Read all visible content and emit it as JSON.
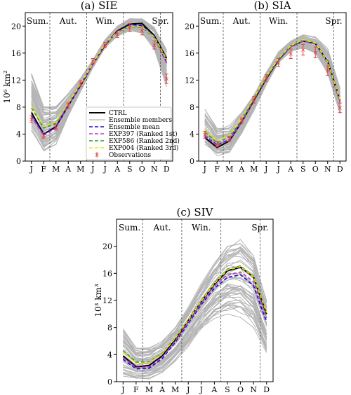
{
  "chart_data": [
    {
      "type": "line",
      "title": "(a) SIE",
      "ylabel": "10⁶ km²",
      "ylim": [
        0,
        22
      ],
      "yticks": [
        0,
        4,
        8,
        12,
        16,
        20
      ],
      "x": [
        "J",
        "F",
        "M",
        "A",
        "M",
        "J",
        "J",
        "A",
        "S",
        "O",
        "N",
        "D"
      ],
      "seasons": [
        "Sum.",
        "Aut.",
        "Win.",
        "Spr."
      ],
      "season_boundaries": [
        1.5,
        4.5,
        7.5,
        10.5
      ],
      "ensemble_band": {
        "lower": [
          4.5,
          1.0,
          2.2,
          6.5,
          10.2,
          13.8,
          16.8,
          18.5,
          19.2,
          18.9,
          16.5,
          11.0
        ],
        "upper": [
          13.0,
          8.0,
          8.3,
          10.0,
          12.3,
          15.0,
          18.0,
          20.0,
          21.1,
          21.1,
          19.8,
          16.5
        ]
      },
      "series": [
        {
          "name": "CTRL",
          "color": "#000000",
          "dash": "solid",
          "values": [
            7.2,
            4.0,
            5.1,
            8.2,
            11.2,
            14.4,
            17.2,
            19.3,
            20.3,
            20.4,
            18.6,
            15.2
          ]
        },
        {
          "name": "Ensemble mean",
          "color": "#1010d0",
          "dash": "dashed",
          "values": [
            6.8,
            4.0,
            5.0,
            8.3,
            11.3,
            14.4,
            17.3,
            19.2,
            20.2,
            20.1,
            18.5,
            14.6
          ]
        },
        {
          "name": "EXP397 (Ranked 1st)",
          "color": "#cc33cc",
          "dash": "dashed",
          "values": [
            6.6,
            3.8,
            4.9,
            8.2,
            11.2,
            14.3,
            17.3,
            19.1,
            20.0,
            19.9,
            18.3,
            14.5
          ]
        },
        {
          "name": "EXP586 (Ranked 2nd)",
          "color": "#2a9d2a",
          "dash": "dashed",
          "values": [
            7.9,
            4.9,
            5.6,
            8.5,
            11.4,
            14.5,
            17.4,
            19.1,
            19.9,
            19.8,
            18.3,
            15.0
          ]
        },
        {
          "name": "EXP004 (Ranked 3rd)",
          "color": "#f2e600",
          "dash": "dashed",
          "values": [
            8.2,
            5.1,
            5.8,
            8.6,
            11.5,
            14.5,
            17.4,
            19.1,
            20.0,
            19.9,
            18.4,
            15.1
          ]
        }
      ],
      "observations": {
        "name": "Observations",
        "color": "#e04040",
        "values": [
          6.2,
          3.8,
          5.0,
          8.2,
          11.5,
          14.8,
          17.2,
          18.8,
          19.8,
          19.3,
          17.2,
          12.2
        ],
        "err": [
          0.5,
          0.4,
          0.4,
          0.4,
          0.4,
          0.4,
          0.4,
          0.5,
          0.6,
          0.6,
          0.6,
          0.7
        ]
      },
      "legend": {
        "placement": "lower-right",
        "entries": [
          "CTRL",
          "Ensemble members",
          "Ensemble mean",
          "EXP397 (Ranked 1st)",
          "EXP586 (Ranked 2nd)",
          "EXP004 (Ranked 3rd)",
          "Observations"
        ]
      }
    },
    {
      "type": "line",
      "title": "(b) SIA",
      "ylabel": "",
      "ylim": [
        0,
        22
      ],
      "yticks": [
        0,
        4,
        8,
        12,
        16,
        20
      ],
      "x": [
        "J",
        "F",
        "M",
        "A",
        "M",
        "J",
        "J",
        "A",
        "S",
        "O",
        "N",
        "D"
      ],
      "seasons": [
        "Sum.",
        "Aut.",
        "Win.",
        "Spr."
      ],
      "season_boundaries": [
        1.5,
        4.5,
        7.5,
        10.5
      ],
      "ensemble_band": {
        "lower": [
          2.5,
          0.8,
          1.3,
          4.0,
          7.5,
          11.3,
          14.6,
          16.2,
          16.8,
          16.0,
          13.0,
          7.0
        ],
        "upper": [
          7.8,
          5.0,
          5.3,
          7.2,
          10.0,
          13.2,
          16.2,
          17.8,
          18.8,
          18.4,
          16.8,
          11.0
        ]
      },
      "series": [
        {
          "name": "CTRL",
          "color": "#000000",
          "dash": "solid",
          "values": [
            3.5,
            2.0,
            3.0,
            5.8,
            9.0,
            12.2,
            15.0,
            17.0,
            17.8,
            17.4,
            14.8,
            9.0
          ]
        },
        {
          "name": "Ensemble mean",
          "color": "#1010d0",
          "dash": "dashed",
          "values": [
            3.8,
            2.4,
            3.2,
            5.9,
            9.1,
            12.3,
            15.0,
            17.0,
            17.8,
            17.5,
            14.6,
            8.8
          ]
        },
        {
          "name": "EXP397 (Ranked 1st)",
          "color": "#cc33cc",
          "dash": "dashed",
          "values": [
            3.7,
            2.3,
            3.1,
            5.8,
            9.1,
            12.3,
            15.1,
            17.0,
            17.8,
            17.3,
            14.5,
            8.7
          ]
        },
        {
          "name": "EXP586 (Ranked 2nd)",
          "color": "#2a9d2a",
          "dash": "dashed",
          "values": [
            4.3,
            2.7,
            3.6,
            6.1,
            9.3,
            12.4,
            15.1,
            17.1,
            17.9,
            17.4,
            14.6,
            9.0
          ]
        },
        {
          "name": "EXP004 (Ranked 3rd)",
          "color": "#f2e600",
          "dash": "dashed",
          "values": [
            4.6,
            3.0,
            3.8,
            6.3,
            9.4,
            12.5,
            15.2,
            17.1,
            18.0,
            17.5,
            14.7,
            9.1
          ]
        }
      ],
      "observations": {
        "name": "Observations",
        "color": "#e04040",
        "values": [
          3.9,
          2.5,
          3.3,
          6.0,
          9.1,
          12.3,
          14.6,
          15.9,
          16.5,
          16.1,
          13.4,
          7.9
        ],
        "err": [
          0.5,
          0.4,
          0.4,
          0.4,
          0.5,
          0.5,
          0.6,
          0.7,
          0.8,
          0.8,
          0.7,
          0.7
        ]
      }
    },
    {
      "type": "line",
      "title": "(c) SIV",
      "ylabel": "10³ km³",
      "ylim": [
        0,
        24
      ],
      "yticks": [
        0,
        4,
        8,
        12,
        16,
        20
      ],
      "x": [
        "J",
        "F",
        "M",
        "A",
        "M",
        "J",
        "J",
        "A",
        "S",
        "O",
        "N",
        "D"
      ],
      "seasons": [
        "Sum.",
        "Aut.",
        "Win.",
        "Spr."
      ],
      "season_boundaries": [
        1.5,
        4.5,
        7.5,
        10.5
      ],
      "ensemble_band": {
        "lower": [
          0.5,
          0.2,
          0.3,
          1.2,
          3.0,
          5.2,
          7.5,
          9.2,
          10.0,
          9.5,
          8.0,
          4.0
        ],
        "upper": [
          7.8,
          5.0,
          5.0,
          6.0,
          8.0,
          11.0,
          14.5,
          17.5,
          20.0,
          21.0,
          19.0,
          12.0
        ]
      },
      "series": [
        {
          "name": "CTRL",
          "color": "#000000",
          "dash": "solid",
          "values": [
            3.8,
            2.2,
            2.4,
            3.8,
            6.2,
            9.0,
            11.8,
            14.4,
            16.4,
            16.9,
            15.5,
            10.0
          ]
        },
        {
          "name": "Ensemble mean",
          "color": "#1010d0",
          "dash": "dashed",
          "values": [
            3.3,
            1.9,
            2.0,
            3.4,
            5.8,
            8.6,
            11.4,
            13.8,
            15.4,
            15.8,
            14.2,
            8.8
          ]
        },
        {
          "name": "EXP397 (Ranked 1st)",
          "color": "#cc33cc",
          "dash": "dashed",
          "values": [
            3.6,
            2.1,
            2.2,
            3.6,
            6.0,
            8.8,
            11.6,
            14.1,
            15.8,
            16.2,
            14.8,
            9.4
          ]
        },
        {
          "name": "EXP586 (Ranked 2nd)",
          "color": "#2a9d2a",
          "dash": "dashed",
          "values": [
            4.6,
            2.9,
            2.9,
            4.2,
            6.5,
            9.2,
            12.0,
            14.6,
            16.6,
            17.1,
            15.6,
            10.3
          ]
        },
        {
          "name": "EXP004 (Ranked 3rd)",
          "color": "#f2e600",
          "dash": "dashed",
          "values": [
            4.4,
            2.7,
            2.8,
            4.1,
            6.4,
            9.1,
            11.9,
            14.5,
            16.5,
            17.0,
            15.5,
            10.2
          ]
        }
      ]
    }
  ]
}
